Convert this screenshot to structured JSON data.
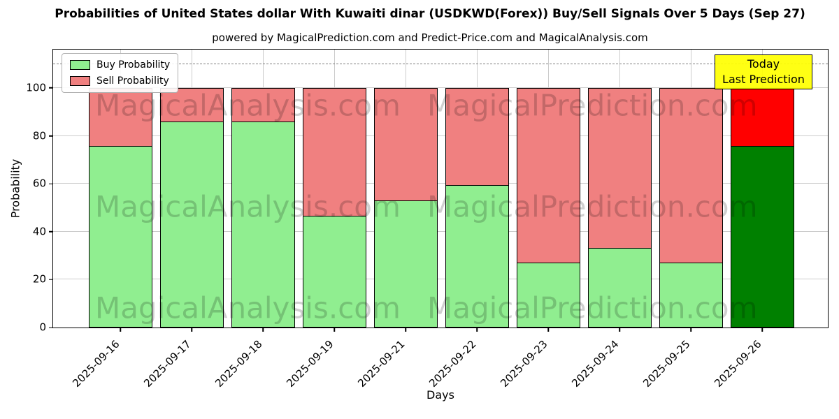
{
  "chart": {
    "title": "Probabilities of United States dollar With Kuwaiti dinar (USDKWD(Forex)) Buy/Sell Signals Over 5 Days (Sep 27)",
    "subtitle": "powered by MagicalPrediction.com and Predict-Price.com and MagicalAnalysis.com",
    "xlabel": "Days",
    "ylabel": "Probability"
  },
  "chart_data": {
    "type": "bar",
    "stacked": true,
    "categories": [
      "2025-09-16",
      "2025-09-17",
      "2025-09-18",
      "2025-09-19",
      "2025-09-21",
      "2025-09-22",
      "2025-09-23",
      "2025-09-24",
      "2025-09-25",
      "2025-09-26"
    ],
    "series": [
      {
        "name": "Buy Probability",
        "values": [
          75.7,
          86.0,
          86.0,
          46.5,
          53.0,
          59.5,
          27.0,
          33.3,
          27.0,
          75.7
        ],
        "color": "#90EE90",
        "highlight_color": "#008000"
      },
      {
        "name": "Sell Probability",
        "values": [
          24.3,
          14.0,
          14.0,
          53.5,
          47.0,
          40.5,
          73.0,
          66.7,
          73.0,
          24.3
        ],
        "color": "#F08080",
        "highlight_color": "#FF0000"
      }
    ],
    "highlight_index": 9,
    "title": "Probabilities of United States dollar With Kuwaiti dinar (USDKWD(Forex)) Buy/Sell Signals Over 5 Days (Sep 27)",
    "xlabel": "Days",
    "ylabel": "Probability",
    "ylim": [
      0,
      116
    ],
    "yticks": [
      0,
      20,
      40,
      60,
      80,
      100
    ],
    "threshold_line": 110,
    "grid": true,
    "legend_position": "upper left"
  },
  "legend": [
    {
      "label": "Buy Probability"
    },
    {
      "label": "Sell Probability"
    }
  ],
  "annotation": {
    "today_line1": "Today",
    "today_line2": "Last Prediction",
    "box_color": "#FFFF00"
  },
  "watermarks": {
    "left_text": "MagicalAnalysis.com",
    "right_text": "MagicalPrediction.com"
  },
  "colors": {
    "buy": "#90EE90",
    "sell": "#F08080",
    "buy_today": "#008000",
    "sell_today": "#FF0000",
    "grid": "#cccccc",
    "threshold": "#7f7f7f"
  }
}
